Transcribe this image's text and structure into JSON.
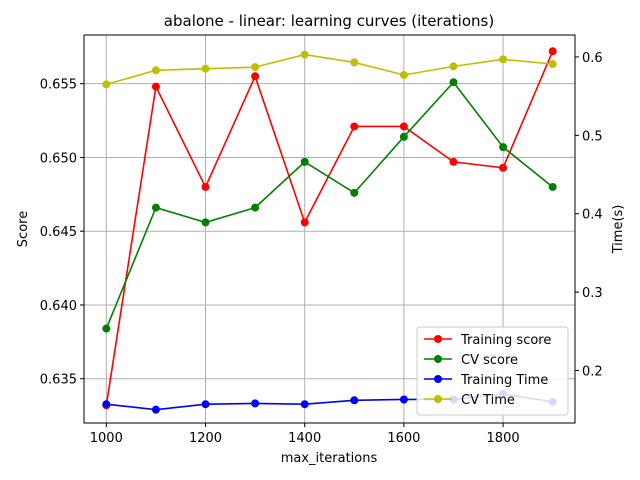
{
  "chart_data": {
    "type": "line",
    "title": "abalone - linear: learning curves (iterations)",
    "xlabel": "max_iterations",
    "ylabel_left": "Score",
    "ylabel_right": "Time(s)",
    "x": [
      1000,
      1100,
      1200,
      1300,
      1400,
      1500,
      1600,
      1700,
      1800,
      1900
    ],
    "xlim": [
      955,
      1945
    ],
    "xticks": [
      1000,
      1200,
      1400,
      1600,
      1800
    ],
    "ylim_left": [
      0.632,
      0.6583
    ],
    "yticks_left": [
      "0.635",
      "0.640",
      "0.645",
      "0.650",
      "0.655"
    ],
    "yticks_left_values": [
      0.635,
      0.64,
      0.645,
      0.65,
      0.655
    ],
    "ylim_right": [
      0.133,
      0.628
    ],
    "yticks_right": [
      "0.2",
      "0.3",
      "0.4",
      "0.5",
      "0.6"
    ],
    "yticks_right_values": [
      0.2,
      0.3,
      0.4,
      0.5,
      0.6
    ],
    "grid": true,
    "legend_position": "lower-right",
    "series": [
      {
        "name": "Training score",
        "axis": "left",
        "color": "#ff0000",
        "values": [
          0.6332,
          0.6548,
          0.648,
          0.6555,
          0.6456,
          0.6521,
          0.6521,
          0.6497,
          0.6493,
          0.6572
        ]
      },
      {
        "name": "CV score",
        "axis": "left",
        "color": "#008000",
        "values": [
          0.6384,
          0.6466,
          0.6456,
          0.6466,
          0.6497,
          0.6476,
          0.6514,
          0.6551,
          0.6507,
          0.648
        ]
      },
      {
        "name": "Training Time",
        "axis": "right",
        "color": "#0000ff",
        "values": [
          0.157,
          0.15,
          0.157,
          0.158,
          0.157,
          0.162,
          0.163,
          0.163,
          0.17,
          0.16
        ]
      },
      {
        "name": "CV Time",
        "axis": "right",
        "color": "#bfbf00",
        "values": [
          0.565,
          0.583,
          0.585,
          0.587,
          0.603,
          0.593,
          0.577,
          0.588,
          0.597,
          0.591
        ]
      }
    ]
  }
}
